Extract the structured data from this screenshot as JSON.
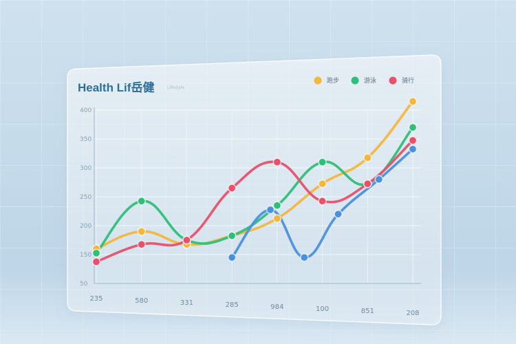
{
  "chart_data": {
    "type": "line",
    "title": "Health Lif岳健",
    "subtitle": "Lifestyle",
    "x_ticks": [
      "235",
      "580",
      "331",
      "285",
      "984",
      "100",
      "851",
      "208"
    ],
    "y_ticks": [
      "400",
      "350",
      "300",
      "250",
      "200",
      "150",
      "50"
    ],
    "ylim": [
      0,
      400
    ],
    "grid": true,
    "legend_position": "top-right",
    "series": [
      {
        "name": "跑步",
        "color": "#f4b63c",
        "x": [
          0,
          1,
          2,
          3,
          4,
          5,
          6,
          7
        ],
        "values": [
          80,
          120,
          90,
          110,
          150,
          230,
          290,
          420
        ]
      },
      {
        "name": "游泳",
        "color": "#2fbf79",
        "x": [
          0,
          1,
          2,
          3,
          4,
          5,
          6,
          7
        ],
        "values": [
          70,
          190,
          100,
          110,
          180,
          280,
          230,
          360
        ]
      },
      {
        "name": "骑行",
        "color": "#e8506b",
        "x": [
          0,
          1,
          2,
          3,
          4,
          5,
          6,
          7
        ],
        "values": [
          50,
          90,
          100,
          220,
          280,
          190,
          230,
          330
        ]
      },
      {
        "name": "",
        "color": "#4a90e0",
        "x": [
          3,
          3.85,
          4.6,
          5.35,
          6.25,
          7
        ],
        "values": [
          60,
          170,
          60,
          160,
          240,
          310
        ]
      }
    ]
  }
}
